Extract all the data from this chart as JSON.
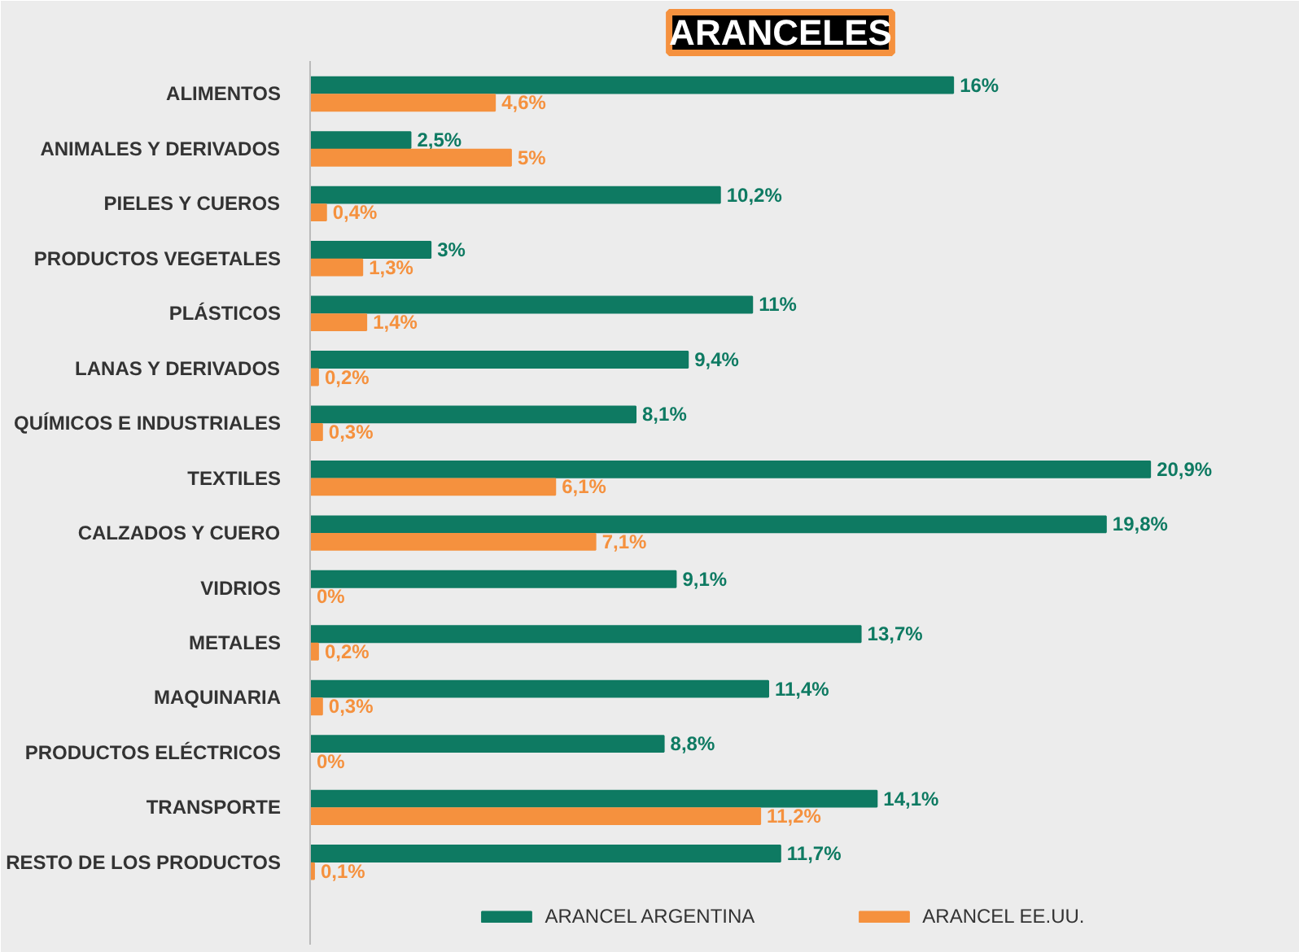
{
  "chart_data": {
    "type": "bar",
    "orientation": "horizontal",
    "title": "ARANCELES",
    "legend": "bottom",
    "categories": [
      "ALIMENTOS",
      "ANIMALES Y DERIVADOS",
      "PIELES Y CUEROS",
      "PRODUCTOS VEGETALES",
      "PLÁSTICOS",
      "LANAS Y DERIVADOS",
      "QUÍMICOS E INDUSTRIALES",
      "TEXTILES",
      "CALZADOS Y CUERO",
      "VIDRIOS",
      "METALES",
      "MAQUINARIA",
      "PRODUCTOS ELÉCTRICOS",
      "TRANSPORTE",
      "RESTO DE LOS PRODUCTOS"
    ],
    "series": [
      {
        "name": "ARANCEL ARGENTINA",
        "color": "#0e7a62",
        "values": [
          16,
          2.5,
          10.2,
          3,
          11,
          9.4,
          8.1,
          20.9,
          19.8,
          9.1,
          13.7,
          11.4,
          8.8,
          14.1,
          11.7
        ],
        "value_labels": [
          "16%",
          "2,5%",
          "10,2%",
          "3%",
          "11%",
          "9,4%",
          "8,1%",
          "20,9%",
          "19,8%",
          "9,1%",
          "13,7%",
          "11,4%",
          "8,8%",
          "14,1%",
          "11,7%"
        ]
      },
      {
        "name": "ARANCEL EE.UU.",
        "color": "#f5913e",
        "values": [
          4.6,
          5,
          0.4,
          1.3,
          1.4,
          0.2,
          0.3,
          6.1,
          7.1,
          0,
          0.2,
          0.3,
          0,
          11.2,
          0.1
        ],
        "value_labels": [
          "4,6%",
          "5%",
          "0,4%",
          "1,3%",
          "1,4%",
          "0,2%",
          "0,3%",
          "6,1%",
          "7,1%",
          "0%",
          "0,2%",
          "0,3%",
          "0%",
          "11,2%",
          "0,1%"
        ]
      }
    ]
  }
}
